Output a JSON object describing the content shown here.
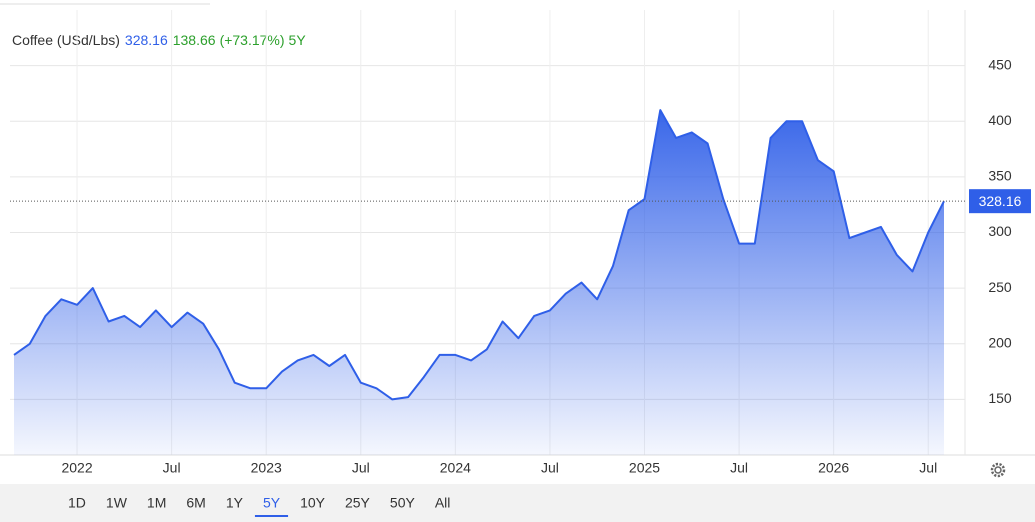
{
  "chart_data": {
    "type": "area",
    "title": "Coffee (USd/Lbs)",
    "last_value": 328.16,
    "change": 138.66,
    "change_pct": "(+73.17%)",
    "period": "5Y",
    "color": "#2f5fe8",
    "x": [
      "2021-09",
      "2021-10",
      "2021-11",
      "2021-12",
      "2022-01",
      "2022-02",
      "2022-03",
      "2022-04",
      "2022-05",
      "2022-06",
      "2022-07",
      "2022-08",
      "2022-09",
      "2022-10",
      "2022-11",
      "2022-12",
      "2023-01",
      "2023-02",
      "2023-03",
      "2023-04",
      "2023-05",
      "2023-06",
      "2023-07",
      "2023-08",
      "2023-09",
      "2023-10",
      "2023-11",
      "2023-12",
      "2024-01",
      "2024-02",
      "2024-03",
      "2024-04",
      "2024-05",
      "2024-06",
      "2024-07",
      "2024-08",
      "2024-09",
      "2024-10",
      "2024-11",
      "2024-12",
      "2025-01",
      "2025-02",
      "2025-03",
      "2025-04",
      "2025-05",
      "2025-06",
      "2025-07",
      "2025-08",
      "2025-09",
      "2025-10",
      "2025-11",
      "2025-12",
      "2026-01",
      "2026-02",
      "2026-03",
      "2026-04",
      "2026-05",
      "2026-06",
      "2026-07",
      "2026-08"
    ],
    "values": [
      190,
      200,
      225,
      240,
      235,
      250,
      220,
      225,
      215,
      230,
      215,
      228,
      218,
      195,
      165,
      160,
      160,
      175,
      185,
      190,
      180,
      190,
      165,
      160,
      150,
      152,
      170,
      190,
      190,
      185,
      195,
      220,
      205,
      225,
      230,
      245,
      255,
      240,
      270,
      320,
      330,
      410,
      385,
      390,
      380,
      330,
      290,
      290,
      385,
      400,
      400,
      365,
      355,
      295,
      300,
      305,
      280,
      265,
      300,
      328.16
    ],
    "xlim": [
      "2021-09",
      "2026-08"
    ],
    "xticks": [
      {
        "value": "2022-01",
        "label": "2022"
      },
      {
        "value": "2022-07",
        "label": "Jul"
      },
      {
        "value": "2023-01",
        "label": "2023"
      },
      {
        "value": "2023-07",
        "label": "Jul"
      },
      {
        "value": "2024-01",
        "label": "2024"
      },
      {
        "value": "2024-07",
        "label": "Jul"
      },
      {
        "value": "2025-01",
        "label": "2025"
      },
      {
        "value": "2025-07",
        "label": "Jul"
      },
      {
        "value": "2026-01",
        "label": "2026"
      },
      {
        "value": "2026-07",
        "label": "Jul"
      }
    ],
    "ylim": [
      100,
      500
    ],
    "yticks": [
      150,
      200,
      250,
      300,
      350,
      400,
      450
    ],
    "grid": true,
    "range_buttons": [
      "1D",
      "1W",
      "1M",
      "6M",
      "1Y",
      "5Y",
      "10Y",
      "25Y",
      "50Y",
      "All"
    ],
    "selected_range_index": 5
  }
}
